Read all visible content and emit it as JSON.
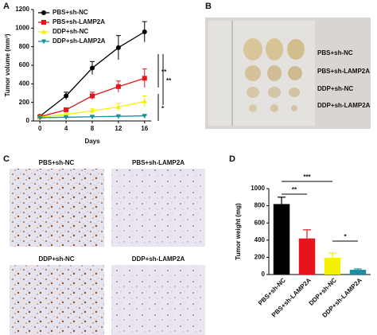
{
  "panels": {
    "a": "A",
    "b": "B",
    "c": "C",
    "d": "D",
    "photo_labels": [
      "PBS+sh-NC",
      "PBS+sh-LAMP2A",
      "DDP+sh-NC",
      "DDP+sh-LAMP2A"
    ],
    "ihc_labels": [
      "PBS+sh-NC",
      "PBS+sh-LAMP2A",
      "DDP+sh-NC",
      "DDP+sh-LAMP2A"
    ]
  },
  "chart_data": [
    {
      "type": "line",
      "xlabel": "Days",
      "ylabel": "Tumor volume (mm³)",
      "x": [
        0,
        4,
        8,
        12,
        16
      ],
      "xlim": [
        -1,
        17
      ],
      "xticks": [
        0,
        4,
        8,
        12,
        16
      ],
      "ylim": [
        0,
        1200
      ],
      "yticks": [
        0,
        200,
        400,
        600,
        800,
        1000,
        1200
      ],
      "legend": "upper left",
      "series": [
        {
          "name": "PBS+sh-NC",
          "color": "#000000",
          "marker": "circle",
          "values": [
            50,
            270,
            570,
            790,
            960
          ],
          "errors": [
            10,
            40,
            70,
            130,
            110
          ]
        },
        {
          "name": "PBS+sh-LAMP2A",
          "color": "#e8141c",
          "marker": "square",
          "values": [
            45,
            120,
            270,
            370,
            460
          ],
          "errors": [
            5,
            20,
            40,
            60,
            100
          ]
        },
        {
          "name": "DDP+sh-NC",
          "color": "#f5f000",
          "marker": "triangle",
          "values": [
            40,
            70,
            110,
            150,
            210
          ],
          "errors": [
            5,
            10,
            20,
            40,
            60
          ]
        },
        {
          "name": "DDP+sh-LAMP2A",
          "color": "#1a8fa0",
          "marker": "down",
          "values": [
            35,
            40,
            45,
            50,
            55
          ],
          "errors": [
            3,
            5,
            5,
            5,
            5
          ]
        }
      ],
      "annotations": [
        "**",
        "**",
        "*"
      ]
    },
    {
      "type": "bar",
      "ylabel": "Tumor weight (mg)",
      "categories": [
        "PBS+sh-NC",
        "PBS+sh-LAMP2A",
        "DDP+sh-NC",
        "DDP+sh-LAMP2A"
      ],
      "values": [
        820,
        420,
        195,
        55
      ],
      "errors": [
        80,
        100,
        55,
        10
      ],
      "colors": [
        "#000000",
        "#e8141c",
        "#f5f000",
        "#1a8fa0"
      ],
      "ylim": [
        0,
        1000
      ],
      "yticks": [
        0,
        200,
        400,
        600,
        800,
        1000
      ],
      "annotations": [
        "***",
        "**",
        "*"
      ]
    }
  ]
}
